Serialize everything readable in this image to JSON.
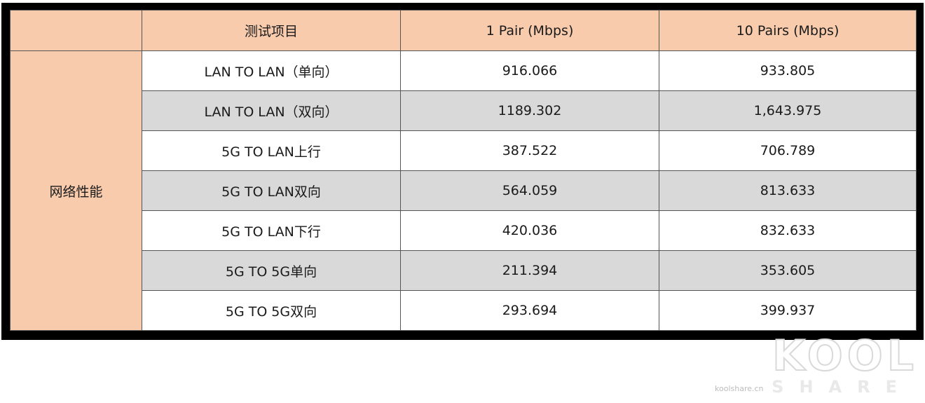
{
  "table": {
    "header": [
      "",
      "测试项目",
      "1 Pair (Mbps)",
      "10  Pairs  (Mbps)"
    ],
    "category": "网络性能",
    "rows": [
      {
        "item": "LAN TO LAN（单向）",
        "one_pair": "916.066",
        "ten_pairs": "933.805"
      },
      {
        "item": "LAN TO LAN（双向）",
        "one_pair": "1189.302",
        "ten_pairs": "1,643.975"
      },
      {
        "item": "5G TO LAN上行",
        "one_pair": "387.522",
        "ten_pairs": "706.789"
      },
      {
        "item": "5G TO LAN双向",
        "one_pair": "564.059",
        "ten_pairs": "813.633"
      },
      {
        "item": "5G TO LAN下行",
        "one_pair": "420.036",
        "ten_pairs": "832.633"
      },
      {
        "item": "5G TO 5G单向",
        "one_pair": "211.394",
        "ten_pairs": "353.605"
      },
      {
        "item": "5G TO 5G双向",
        "one_pair": "293.694",
        "ten_pairs": "399.937"
      }
    ],
    "colors": {
      "header_bg": "#f8cbad",
      "alt_row_bg": "#d9d9d9",
      "frame": "#000000"
    }
  },
  "watermark": {
    "main": "KOOL",
    "sub": "SHARE",
    "url": "koolshare.cn"
  }
}
